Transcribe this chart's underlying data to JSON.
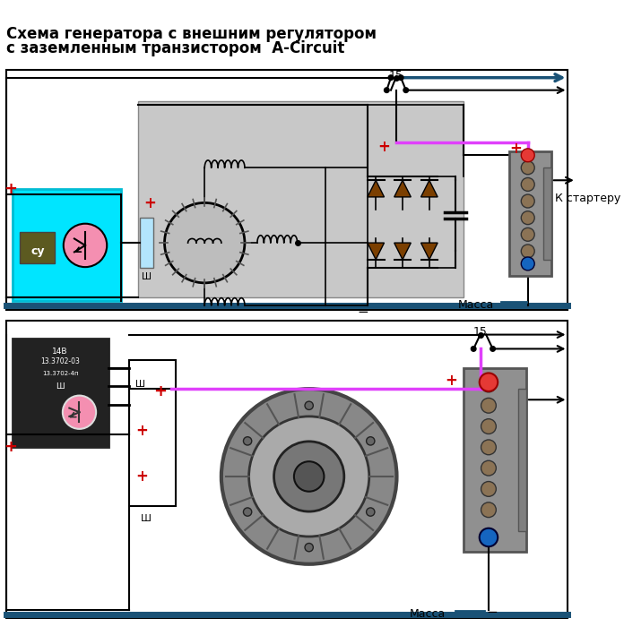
{
  "title_line1": "Схема генератора с внешним регулятором",
  "title_line2": "с заземленным транзистором  A-Circuit",
  "bg_color": "#ffffff",
  "title_fontsize": 12,
  "label_15": "15",
  "label_massa": "Масса",
  "label_k_starteru": "К стартеру",
  "label_sh": "Ш",
  "label_sy": "су",
  "regulator_bg": "#00e5ff",
  "regulator_border": "#00bcd4",
  "bottom_bar_color": "#1a5276",
  "diode_color": "#7B3F00",
  "pink_line": "#e040fb",
  "blue_arrow": "#1a5276",
  "red_plus": "#cc0000",
  "gray_box": "#c8c8c8",
  "bat_color": "#909090",
  "screw_color": "#8B7355"
}
